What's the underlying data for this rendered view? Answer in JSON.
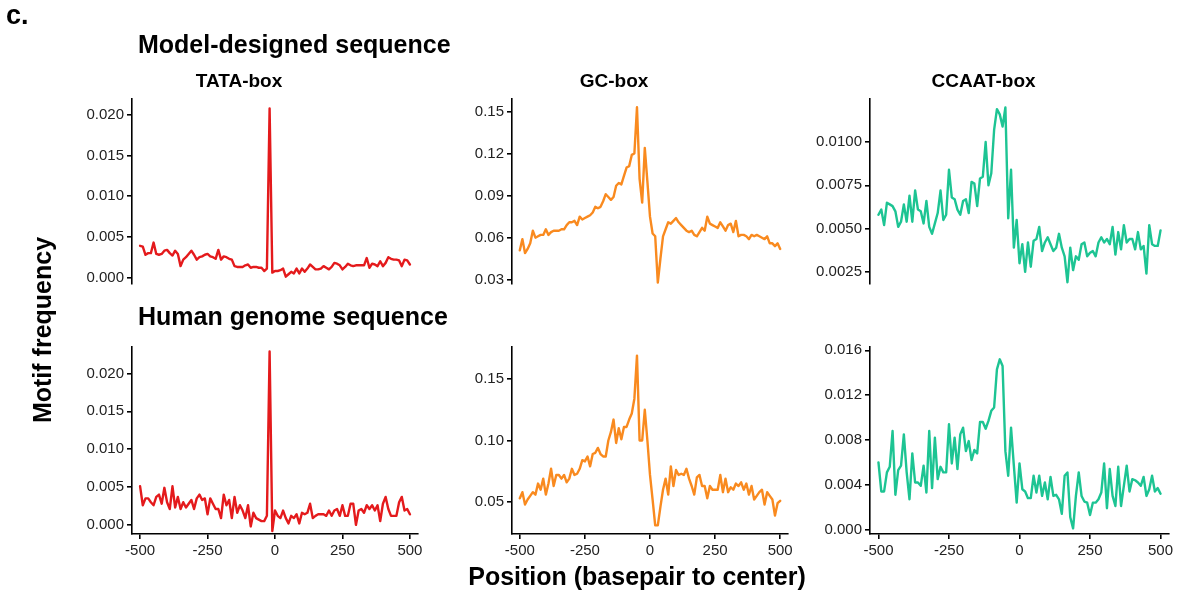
{
  "chart_data": [
    {
      "type": "line",
      "title": "TATA-box",
      "annotations": [
        "c.",
        "Model-designed sequence"
      ],
      "tick_labels": "y",
      "grid": false,
      "legend": false,
      "marker": "none",
      "line_style": "solid",
      "ylim": [
        -0.0008,
        0.022
      ],
      "yticks": [
        {
          "value": 0,
          "label": "0.000"
        },
        {
          "value": 0.005,
          "label": "0.005"
        },
        {
          "value": 0.01,
          "label": "0.010"
        },
        {
          "value": 0.015,
          "label": "0.015"
        },
        {
          "value": 0.02,
          "label": "0.020"
        }
      ],
      "x": [
        -500,
        -490,
        -480,
        -470,
        -460,
        -450,
        -440,
        -430,
        -420,
        -410,
        -400,
        -390,
        -380,
        -370,
        -360,
        -350,
        -340,
        -330,
        -320,
        -310,
        -300,
        -290,
        -280,
        -270,
        -260,
        -250,
        -240,
        -230,
        -220,
        -210,
        -200,
        -190,
        -180,
        -170,
        -160,
        -150,
        -140,
        -130,
        -120,
        -110,
        -100,
        -90,
        -80,
        -70,
        -60,
        -50,
        -40,
        -30,
        -20,
        -10,
        0,
        10,
        20,
        30,
        40,
        50,
        60,
        70,
        80,
        90,
        100,
        110,
        120,
        130,
        140,
        150,
        160,
        170,
        180,
        190,
        200,
        210,
        220,
        230,
        240,
        250,
        260,
        270,
        280,
        290,
        300,
        310,
        320,
        330,
        340,
        350,
        360,
        370,
        380,
        390,
        400,
        410,
        420,
        430,
        440,
        450,
        460,
        470,
        480,
        490,
        500
      ],
      "series": [
        {
          "color": "#e41a1c",
          "values": [
            0.0039,
            0.0038,
            0.0028,
            0.003,
            0.003,
            0.0043,
            0.0029,
            0.0028,
            0.0029,
            0.0033,
            0.0034,
            0.003,
            0.0027,
            0.0033,
            0.0029,
            0.0014,
            0.0022,
            0.0025,
            0.0029,
            0.0033,
            0.0028,
            0.0022,
            0.0025,
            0.0026,
            0.0028,
            0.0029,
            0.0026,
            0.0025,
            0.0023,
            0.0034,
            0.0022,
            0.0026,
            0.0025,
            0.0023,
            0.0022,
            0.0014,
            0.0013,
            0.0013,
            0.0013,
            0.0015,
            0.0016,
            0.0012,
            0.0013,
            0.0013,
            0.0012,
            0.0012,
            0.0008,
            0.0011,
            0.0208,
            0.0006,
            0.0008,
            0.0008,
            0.0009,
            0.0011,
            0.0001,
            0.0004,
            0.0007,
            0.0005,
            0.0011,
            0.0005,
            0.0011,
            0.0007,
            0.0011,
            0.0016,
            0.0013,
            0.001,
            0.001,
            0.0011,
            0.0014,
            0.0012,
            0.001,
            0.0013,
            0.0018,
            0.0017,
            0.0015,
            0.001,
            0.0013,
            0.0017,
            0.0015,
            0.0014,
            0.0015,
            0.0015,
            0.0015,
            0.0015,
            0.0024,
            0.0012,
            0.0017,
            0.0016,
            0.0014,
            0.002,
            0.0014,
            0.0018,
            0.0025,
            0.0023,
            0.0022,
            0.0022,
            0.0021,
            0.0014,
            0.0022,
            0.0021,
            0.0016
          ]
        }
      ]
    },
    {
      "type": "line",
      "title": "GC-box",
      "tick_labels": "y",
      "grid": false,
      "legend": false,
      "marker": "none",
      "line_style": "solid",
      "ylim": [
        0.027,
        0.159
      ],
      "yticks": [
        {
          "value": 0.03,
          "label": "0.03"
        },
        {
          "value": 0.06,
          "label": "0.06"
        },
        {
          "value": 0.09,
          "label": "0.09"
        },
        {
          "value": 0.12,
          "label": "0.12"
        },
        {
          "value": 0.15,
          "label": "0.15"
        }
      ],
      "x": [
        -500,
        -490,
        -480,
        -470,
        -460,
        -450,
        -440,
        -430,
        -420,
        -410,
        -400,
        -390,
        -380,
        -370,
        -360,
        -350,
        -340,
        -330,
        -320,
        -310,
        -300,
        -290,
        -280,
        -270,
        -260,
        -250,
        -240,
        -230,
        -220,
        -210,
        -200,
        -190,
        -180,
        -170,
        -160,
        -150,
        -140,
        -130,
        -120,
        -110,
        -100,
        -90,
        -80,
        -70,
        -60,
        -50,
        -40,
        -30,
        -20,
        -10,
        0,
        10,
        20,
        30,
        40,
        50,
        60,
        70,
        80,
        90,
        100,
        110,
        120,
        130,
        140,
        150,
        160,
        170,
        180,
        190,
        200,
        210,
        220,
        230,
        240,
        250,
        260,
        270,
        280,
        290,
        300,
        310,
        320,
        330,
        340,
        350,
        360,
        370,
        380,
        390,
        400,
        410,
        420,
        430,
        440,
        450,
        460,
        470,
        480,
        490,
        500
      ],
      "series": [
        {
          "color": "#f98a1f",
          "values": [
            0.051,
            0.059,
            0.049,
            0.052,
            0.056,
            0.065,
            0.06,
            0.061,
            0.062,
            0.062,
            0.066,
            0.062,
            0.064,
            0.065,
            0.065,
            0.065,
            0.066,
            0.066,
            0.069,
            0.071,
            0.071,
            0.072,
            0.069,
            0.075,
            0.073,
            0.074,
            0.075,
            0.076,
            0.078,
            0.082,
            0.081,
            0.082,
            0.086,
            0.091,
            0.089,
            0.087,
            0.089,
            0.097,
            0.099,
            0.098,
            0.104,
            0.11,
            0.111,
            0.119,
            0.12,
            0.153,
            0.102,
            0.085,
            0.124,
            0.1,
            0.075,
            0.063,
            0.061,
            0.028,
            0.045,
            0.061,
            0.066,
            0.071,
            0.07,
            0.072,
            0.074,
            0.071,
            0.069,
            0.067,
            0.065,
            0.064,
            0.065,
            0.062,
            0.061,
            0.064,
            0.067,
            0.065,
            0.075,
            0.07,
            0.069,
            0.068,
            0.067,
            0.071,
            0.068,
            0.065,
            0.069,
            0.07,
            0.064,
            0.072,
            0.061,
            0.062,
            0.062,
            0.061,
            0.059,
            0.062,
            0.061,
            0.062,
            0.061,
            0.06,
            0.059,
            0.061,
            0.056,
            0.056,
            0.054,
            0.056,
            0.052
          ]
        }
      ]
    },
    {
      "type": "line",
      "title": "CCAAT-box",
      "tick_labels": "y",
      "grid": false,
      "legend": false,
      "marker": "none",
      "line_style": "solid",
      "ylim": [
        0.0018,
        0.0125
      ],
      "yticks": [
        {
          "value": 0.0025,
          "label": "0.0025"
        },
        {
          "value": 0.005,
          "label": "0.0050"
        },
        {
          "value": 0.0075,
          "label": "0.0075"
        },
        {
          "value": 0.01,
          "label": "0.0100"
        }
      ],
      "x": [
        -500,
        -490,
        -480,
        -470,
        -460,
        -450,
        -440,
        -430,
        -420,
        -410,
        -400,
        -390,
        -380,
        -370,
        -360,
        -350,
        -340,
        -330,
        -320,
        -310,
        -300,
        -290,
        -280,
        -270,
        -260,
        -250,
        -240,
        -230,
        -220,
        -210,
        -200,
        -190,
        -180,
        -170,
        -160,
        -150,
        -140,
        -130,
        -120,
        -110,
        -100,
        -90,
        -80,
        -70,
        -60,
        -50,
        -40,
        -30,
        -20,
        -10,
        0,
        10,
        20,
        30,
        40,
        50,
        60,
        70,
        80,
        90,
        100,
        110,
        120,
        130,
        140,
        150,
        160,
        170,
        180,
        190,
        200,
        210,
        220,
        230,
        240,
        250,
        260,
        270,
        280,
        290,
        300,
        310,
        320,
        330,
        340,
        350,
        360,
        370,
        380,
        390,
        400,
        410,
        420,
        430,
        440,
        450,
        460,
        470,
        480,
        490,
        500
      ],
      "series": [
        {
          "color": "#1dc493",
          "values": [
            0.0058,
            0.0061,
            0.0052,
            0.0065,
            0.0064,
            0.0063,
            0.006,
            0.0051,
            0.0054,
            0.0064,
            0.0054,
            0.0069,
            0.0054,
            0.0072,
            0.0061,
            0.006,
            0.0053,
            0.0066,
            0.0051,
            0.0047,
            0.0053,
            0.0059,
            0.0072,
            0.0055,
            0.0058,
            0.0084,
            0.0068,
            0.0067,
            0.0061,
            0.0058,
            0.0066,
            0.0067,
            0.0059,
            0.0077,
            0.0076,
            0.0063,
            0.0079,
            0.008,
            0.01,
            0.0075,
            0.0082,
            0.0107,
            0.0119,
            0.0116,
            0.0109,
            0.012,
            0.0056,
            0.0084,
            0.0039,
            0.0055,
            0.003,
            0.0041,
            0.0025,
            0.0042,
            0.0028,
            0.0043,
            0.0044,
            0.0051,
            0.0037,
            0.0042,
            0.0045,
            0.0041,
            0.0037,
            0.0039,
            0.0047,
            0.0039,
            0.0034,
            0.0019,
            0.0039,
            0.0026,
            0.0034,
            0.0032,
            0.0041,
            0.0042,
            0.0034,
            0.0036,
            0.0037,
            0.0034,
            0.0042,
            0.0045,
            0.0042,
            0.0044,
            0.0041,
            0.0051,
            0.0035,
            0.0048,
            0.0038,
            0.0052,
            0.0042,
            0.0044,
            0.0044,
            0.0038,
            0.0048,
            0.0038,
            0.004,
            0.0024,
            0.0052,
            0.0041,
            0.004,
            0.004,
            0.0049
          ]
        }
      ]
    },
    {
      "type": "line",
      "annotations": [
        "Human genome sequence"
      ],
      "ylabel": "Motif frequency",
      "grid": false,
      "legend": false,
      "marker": "none",
      "line_style": "solid",
      "xlim": [
        -530,
        530
      ],
      "xticks": [
        -500,
        -250,
        0,
        250,
        500
      ],
      "ylim": [
        -0.0012,
        0.0235
      ],
      "yticks": [
        {
          "value": 0,
          "label": "0.000"
        },
        {
          "value": 0.005,
          "label": "0.005"
        },
        {
          "value": 0.01,
          "label": "0.010"
        },
        {
          "value": 0.015,
          "label": "0.015"
        },
        {
          "value": 0.02,
          "label": "0.020"
        }
      ],
      "x": [
        -500,
        -490,
        -480,
        -470,
        -460,
        -450,
        -440,
        -430,
        -420,
        -410,
        -400,
        -390,
        -380,
        -370,
        -360,
        -350,
        -340,
        -330,
        -320,
        -310,
        -300,
        -290,
        -280,
        -270,
        -260,
        -250,
        -240,
        -230,
        -220,
        -210,
        -200,
        -190,
        -180,
        -170,
        -160,
        -150,
        -140,
        -130,
        -120,
        -110,
        -100,
        -90,
        -80,
        -70,
        -60,
        -50,
        -40,
        -30,
        -20,
        -10,
        0,
        10,
        20,
        30,
        40,
        50,
        60,
        70,
        80,
        90,
        100,
        110,
        120,
        130,
        140,
        150,
        160,
        170,
        180,
        190,
        200,
        210,
        220,
        230,
        240,
        250,
        260,
        270,
        280,
        290,
        300,
        310,
        320,
        330,
        340,
        350,
        360,
        370,
        380,
        390,
        400,
        410,
        420,
        430,
        440,
        450,
        460,
        470,
        480,
        490,
        500
      ],
      "series": [
        {
          "color": "#e41a1c",
          "values": [
            0.0051,
            0.0026,
            0.0035,
            0.0035,
            0.003,
            0.0026,
            0.0037,
            0.004,
            0.0028,
            0.0049,
            0.003,
            0.0021,
            0.0051,
            0.0023,
            0.0037,
            0.0021,
            0.003,
            0.0023,
            0.0028,
            0.0033,
            0.0021,
            0.0035,
            0.004,
            0.0033,
            0.0035,
            0.0014,
            0.0035,
            0.0028,
            0.0021,
            0.0021,
            0.0009,
            0.004,
            0.0026,
            0.0033,
            0.0009,
            0.0037,
            0.0016,
            0.0026,
            0.0019,
            0.0009,
            0.0026,
            -0.0002,
            0.0016,
            0.0009,
            0.0007,
            0.0005,
            0.0005,
            0.0012,
            0.0229,
            -0.0008,
            0.0019,
            0.0012,
            0.0009,
            0.0019,
            0.0009,
            0.0002,
            0.0012,
            0.0009,
            0.0014,
            0.0002,
            0.0016,
            0.0014,
            0.0016,
            0.0028,
            0.0009,
            0.0012,
            0.0014,
            0.0014,
            0.0014,
            0.0012,
            0.0019,
            0.0012,
            0.0019,
            0.0021,
            0.0012,
            0.0026,
            0.0012,
            0.0012,
            0.0028,
            0.0028,
            0,
            0.0019,
            0.0021,
            0.0016,
            0.0026,
            0.0021,
            0.0026,
            0.0019,
            0.0026,
            0.0005,
            0.0028,
            0.0037,
            0.0021,
            0.0012,
            0.0012,
            0.0012,
            0.003,
            0.0037,
            0.0019,
            0.0021,
            0.0014
          ]
        }
      ]
    },
    {
      "type": "line",
      "xlabel": "Position (basepair to center)",
      "grid": false,
      "legend": false,
      "marker": "none",
      "line_style": "solid",
      "xlim": [
        -530,
        530
      ],
      "xticks": [
        -500,
        -250,
        0,
        250,
        500
      ],
      "ylim": [
        0.024,
        0.176
      ],
      "yticks": [
        {
          "value": 0.05,
          "label": "0.05"
        },
        {
          "value": 0.1,
          "label": "0.10"
        },
        {
          "value": 0.15,
          "label": "0.15"
        }
      ],
      "x": [
        -500,
        -490,
        -480,
        -470,
        -460,
        -450,
        -440,
        -430,
        -420,
        -410,
        -400,
        -390,
        -380,
        -370,
        -360,
        -350,
        -340,
        -330,
        -320,
        -310,
        -300,
        -290,
        -280,
        -270,
        -260,
        -250,
        -240,
        -230,
        -220,
        -210,
        -200,
        -190,
        -180,
        -170,
        -160,
        -150,
        -140,
        -130,
        -120,
        -110,
        -100,
        -90,
        -80,
        -70,
        -60,
        -50,
        -40,
        -30,
        -20,
        -10,
        0,
        10,
        20,
        30,
        40,
        50,
        60,
        70,
        80,
        90,
        100,
        110,
        120,
        130,
        140,
        150,
        160,
        170,
        180,
        190,
        200,
        210,
        220,
        230,
        240,
        250,
        260,
        270,
        280,
        290,
        300,
        310,
        320,
        330,
        340,
        350,
        360,
        370,
        380,
        390,
        400,
        410,
        420,
        430,
        440,
        450,
        460,
        470,
        480,
        490,
        500
      ],
      "series": [
        {
          "color": "#f98a1f",
          "values": [
            0.053,
            0.058,
            0.048,
            0.052,
            0.055,
            0.058,
            0.056,
            0.065,
            0.06,
            0.069,
            0.056,
            0.065,
            0.077,
            0.063,
            0.072,
            0.072,
            0.069,
            0.072,
            0.066,
            0.069,
            0.077,
            0.072,
            0.073,
            0.077,
            0.084,
            0.083,
            0.087,
            0.079,
            0.089,
            0.09,
            0.094,
            0.089,
            0.087,
            0.087,
            0.1,
            0.107,
            0.117,
            0.098,
            0.11,
            0.101,
            0.111,
            0.111,
            0.117,
            0.122,
            0.134,
            0.169,
            0.1,
            0.1,
            0.125,
            0.1,
            0.072,
            0.052,
            0.031,
            0.031,
            0.046,
            0.06,
            0.069,
            0.056,
            0.079,
            0.063,
            0.076,
            0.072,
            0.073,
            0.072,
            0.077,
            0.069,
            0.063,
            0.056,
            0.07,
            0.072,
            0.063,
            0.063,
            0.053,
            0.063,
            0.06,
            0.06,
            0.06,
            0.072,
            0.058,
            0.069,
            0.058,
            0.062,
            0.06,
            0.065,
            0.063,
            0.066,
            0.06,
            0.065,
            0.056,
            0.063,
            0.052,
            0.055,
            0.058,
            0.06,
            0.048,
            0.058,
            0.055,
            0.052,
            0.039,
            0.049,
            0.051
          ]
        }
      ]
    },
    {
      "type": "line",
      "grid": false,
      "legend": false,
      "marker": "none",
      "line_style": "solid",
      "xlim": [
        -530,
        530
      ],
      "xticks": [
        -500,
        -250,
        0,
        250,
        500
      ],
      "ylim": [
        -0.0004,
        0.0163
      ],
      "yticks": [
        {
          "value": 0,
          "label": "0.000"
        },
        {
          "value": 0.004,
          "label": "0.004"
        },
        {
          "value": 0.008,
          "label": "0.008"
        },
        {
          "value": 0.012,
          "label": "0.012"
        },
        {
          "value": 0.016,
          "label": "0.016"
        }
      ],
      "x": [
        -500,
        -490,
        -480,
        -470,
        -460,
        -450,
        -440,
        -430,
        -420,
        -410,
        -400,
        -390,
        -380,
        -370,
        -360,
        -350,
        -340,
        -330,
        -320,
        -310,
        -300,
        -290,
        -280,
        -270,
        -260,
        -250,
        -240,
        -230,
        -220,
        -210,
        -200,
        -190,
        -180,
        -170,
        -160,
        -150,
        -140,
        -130,
        -120,
        -110,
        -100,
        -90,
        -80,
        -70,
        -60,
        -50,
        -40,
        -30,
        -20,
        -10,
        0,
        10,
        20,
        30,
        40,
        50,
        60,
        70,
        80,
        90,
        100,
        110,
        120,
        130,
        140,
        150,
        160,
        170,
        180,
        190,
        200,
        210,
        220,
        230,
        240,
        250,
        260,
        270,
        280,
        290,
        300,
        310,
        320,
        330,
        340,
        350,
        360,
        370,
        380,
        390,
        400,
        410,
        420,
        430,
        440,
        450,
        460,
        470,
        480,
        490,
        500
      ],
      "series": [
        {
          "color": "#1dc493",
          "values": [
            0.006,
            0.0034,
            0.0034,
            0.0051,
            0.0056,
            0.0088,
            0.0031,
            0.0053,
            0.0057,
            0.0085,
            0.0051,
            0.0027,
            0.0068,
            0.0042,
            0.0042,
            0.0039,
            0.0057,
            0.0033,
            0.0088,
            0.0037,
            0.0082,
            0.0045,
            0.0056,
            0.0051,
            0.0051,
            0.0094,
            0.0059,
            0.0082,
            0.0054,
            0.0085,
            0.0091,
            0.007,
            0.0079,
            0.0062,
            0.0071,
            0.0068,
            0.0096,
            0.0096,
            0.009,
            0.0097,
            0.0106,
            0.0109,
            0.0143,
            0.0152,
            0.0146,
            0.007,
            0.0048,
            0.0091,
            0.0057,
            0.0024,
            0.0059,
            0.0036,
            0.0034,
            0.0028,
            0.0028,
            0.0048,
            0.0033,
            0.0048,
            0.003,
            0.0042,
            0.0027,
            0.0047,
            0.003,
            0.0031,
            0.0027,
            0.0014,
            0.0048,
            0.0051,
            0.0011,
            0.0001,
            0.003,
            0.0051,
            0.003,
            0.0025,
            0.0024,
            0.0013,
            0.0024,
            0.0024,
            0.0027,
            0.0033,
            0.0059,
            0.0019,
            0.0054,
            0.003,
            0.0021,
            0.0056,
            0.0021,
            0.0039,
            0.0057,
            0.0034,
            0.0045,
            0.0044,
            0.0042,
            0.0039,
            0.0047,
            0.003,
            0.0036,
            0.0048,
            0.0034,
            0.0037,
            0.0032
          ]
        }
      ]
    }
  ]
}
